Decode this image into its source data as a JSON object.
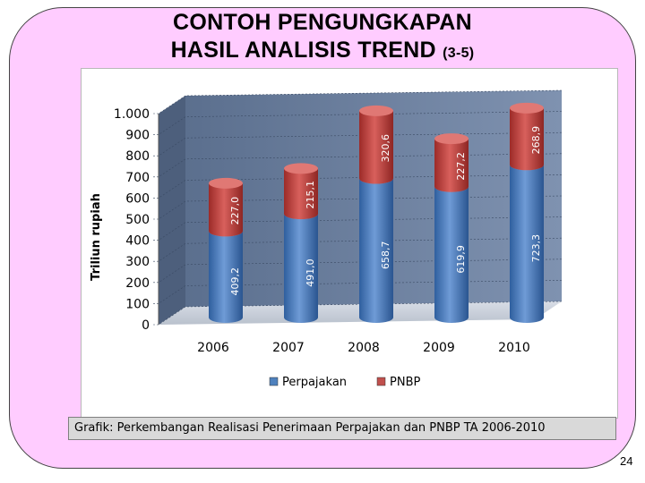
{
  "slide": {
    "title_line1": "CONTOH PENGUNGKAPAN",
    "title_line2": "HASIL ANALISIS TREND",
    "title_suffix": "(3-5)",
    "caption": "Grafik: Perkembangan Realisasi Penerimaan Perpajakan dan PNBP TA 2006-2010",
    "page_number": "24"
  },
  "chart_data": {
    "type": "bar",
    "stacked": true,
    "three_d": true,
    "categories": [
      "2006",
      "2007",
      "2008",
      "2009",
      "2010"
    ],
    "series": [
      {
        "name": "Perpajakan",
        "values": [
          409.2,
          491.0,
          658.7,
          619.9,
          723.3
        ],
        "labels": [
          "409,2",
          "491,0",
          "658,7",
          "619,9",
          "723,3"
        ],
        "color": "#4f81bd"
      },
      {
        "name": "PNBP",
        "values": [
          227.0,
          215.1,
          320.6,
          227.2,
          268.9
        ],
        "labels": [
          "227,0",
          "215,1",
          "320,6",
          "227,2",
          "268,9"
        ],
        "color": "#c0504d"
      }
    ],
    "ylabel": "Triliun rupiah",
    "ylim": [
      0,
      1000
    ],
    "yticks": [
      0,
      100,
      200,
      300,
      400,
      500,
      600,
      700,
      800,
      900,
      1000
    ],
    "ytick_labels": [
      "0",
      "100",
      "200",
      "300",
      "400",
      "500",
      "600",
      "700",
      "800",
      "900",
      "1.000"
    ],
    "legend_position": "bottom",
    "grid": true
  }
}
